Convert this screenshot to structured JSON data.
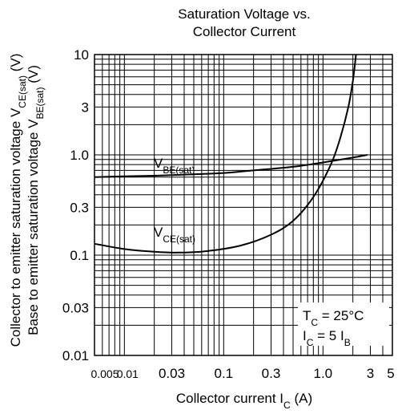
{
  "chart_data": {
    "type": "line",
    "title_lines": [
      "Saturation Voltage vs.",
      "Collector Current"
    ],
    "xlabel": {
      "main": "Collector current  I",
      "sub": "C",
      "unit": "  (A)"
    },
    "ylabel": [
      {
        "main": "Collector to emitter saturation voltage  V",
        "sub": "CE(sat)",
        "unit": " (V)"
      },
      {
        "main": "Base to emitter saturation voltage  V",
        "sub": "BE(sat)",
        "unit": " (V)"
      }
    ],
    "x_scale": "log",
    "y_scale": "log",
    "xlim": [
      0.005,
      5
    ],
    "ylim": [
      0.01,
      10
    ],
    "x_ticks": [
      {
        "value": 0.005,
        "label": "0.005"
      },
      {
        "value": 0.01,
        "label": "0.01"
      },
      {
        "value": 0.03,
        "label": "0.03"
      },
      {
        "value": 0.1,
        "label": "0.1"
      },
      {
        "value": 0.3,
        "label": "0.3"
      },
      {
        "value": 1.0,
        "label": "1.0"
      },
      {
        "value": 3,
        "label": "3"
      },
      {
        "value": 5,
        "label": "5"
      }
    ],
    "y_ticks": [
      {
        "value": 0.01,
        "label": "0.01"
      },
      {
        "value": 0.03,
        "label": "0.03"
      },
      {
        "value": 0.1,
        "label": "0.1"
      },
      {
        "value": 0.3,
        "label": "0.3"
      },
      {
        "value": 1.0,
        "label": "1.0"
      },
      {
        "value": 3,
        "label": "3"
      },
      {
        "value": 10,
        "label": "10"
      }
    ],
    "grid": true,
    "series": [
      {
        "name": "V",
        "name_sub": "BE(sat)",
        "x": [
          0.005,
          0.01,
          0.02,
          0.05,
          0.1,
          0.2,
          0.5,
          1.0,
          2.0,
          2.8
        ],
        "y": [
          0.6,
          0.61,
          0.62,
          0.64,
          0.66,
          0.7,
          0.76,
          0.84,
          0.94,
          1.0
        ]
      },
      {
        "name": "V",
        "name_sub": "CE(sat)",
        "x": [
          0.005,
          0.01,
          0.02,
          0.035,
          0.07,
          0.15,
          0.3,
          0.5,
          0.8,
          1.2,
          1.5,
          1.8,
          2.0,
          2.15
        ],
        "y": [
          0.13,
          0.115,
          0.108,
          0.106,
          0.11,
          0.125,
          0.16,
          0.22,
          0.38,
          0.8,
          1.5,
          3.0,
          5.5,
          10
        ]
      }
    ],
    "annotations": [
      {
        "line": "T",
        "sub": "C",
        "rest": " = 25°C"
      },
      {
        "line": "I",
        "sub": "C",
        "rest": " = 5 I",
        "sub2": "B"
      }
    ]
  }
}
